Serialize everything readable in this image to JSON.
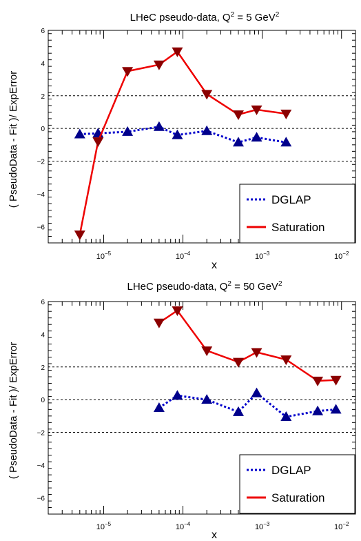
{
  "chart_data": [
    {
      "type": "line",
      "title_parts": [
        "LHeC pseudo-data, Q",
        "2",
        " = 5 GeV",
        "2"
      ],
      "ylabel": "( PseudoData - Fit )/ ExpError",
      "xlabel": "x",
      "x_scale": "log",
      "xlim": [
        2e-06,
        0.015
      ],
      "ylim": [
        -7,
        6
      ],
      "y_ticks": [
        6,
        4,
        2,
        0,
        -2,
        -4,
        -6
      ],
      "x_ticks": [
        {
          "value": 1e-05,
          "base": "10",
          "exp": "−5"
        },
        {
          "value": 0.0001,
          "base": "10",
          "exp": "−4"
        },
        {
          "value": 0.001,
          "base": "10",
          "exp": "−3"
        },
        {
          "value": 0.01,
          "base": "10",
          "exp": "−2"
        }
      ],
      "reference_lines": [
        2,
        0,
        -2
      ],
      "series": [
        {
          "name": "DGLAP",
          "color": "#0000cc",
          "marker_color": "#00008b",
          "marker": "triangle-up",
          "line_style": "dotted",
          "x": [
            5e-06,
            8.5e-06,
            2e-05,
            5e-05,
            8.5e-05,
            0.0002,
            0.0005,
            0.00085,
            0.002
          ],
          "y": [
            -0.35,
            -0.3,
            -0.2,
            0.1,
            -0.4,
            -0.15,
            -0.85,
            -0.55,
            -0.85
          ]
        },
        {
          "name": "Saturation",
          "color": "#ee0000",
          "marker_color": "#8b0000",
          "marker": "triangle-down",
          "line_style": "solid",
          "x": [
            5e-06,
            8.5e-06,
            2e-05,
            5e-05,
            8.5e-05,
            0.0002,
            0.0005,
            0.00085,
            0.002
          ],
          "y": [
            -6.5,
            -0.8,
            3.5,
            3.9,
            4.7,
            2.1,
            0.85,
            1.15,
            0.9
          ]
        }
      ],
      "legend": {
        "placement": "bottom-right",
        "entries": [
          "DGLAP",
          "Saturation"
        ]
      }
    },
    {
      "type": "line",
      "title_parts": [
        "LHeC pseudo-data, Q",
        "2",
        " = 50 GeV",
        "2"
      ],
      "ylabel": "( PseudoData - Fit )/ ExpError",
      "xlabel": "x",
      "x_scale": "log",
      "xlim": [
        2e-06,
        0.015
      ],
      "ylim": [
        -7,
        6
      ],
      "y_ticks": [
        6,
        4,
        2,
        0,
        -2,
        -4,
        -6
      ],
      "x_ticks": [
        {
          "value": 1e-05,
          "base": "10",
          "exp": "−5"
        },
        {
          "value": 0.0001,
          "base": "10",
          "exp": "−4"
        },
        {
          "value": 0.001,
          "base": "10",
          "exp": "−3"
        },
        {
          "value": 0.01,
          "base": "10",
          "exp": "−2"
        }
      ],
      "reference_lines": [
        2,
        0,
        -2
      ],
      "series": [
        {
          "name": "DGLAP",
          "color": "#0000cc",
          "marker_color": "#00008b",
          "marker": "triangle-up",
          "line_style": "dotted",
          "x": [
            5e-05,
            8.5e-05,
            0.0002,
            0.0005,
            0.00085,
            0.002,
            0.005,
            0.0085
          ],
          "y": [
            -0.5,
            0.25,
            0.0,
            -0.75,
            0.4,
            -1.05,
            -0.7,
            -0.6
          ]
        },
        {
          "name": "Saturation",
          "color": "#ee0000",
          "marker_color": "#8b0000",
          "marker": "triangle-down",
          "line_style": "solid",
          "x": [
            5e-05,
            8.5e-05,
            0.0002,
            0.0005,
            0.00085,
            0.002,
            0.005,
            0.0085
          ],
          "y": [
            4.7,
            5.45,
            3.0,
            2.3,
            2.9,
            2.45,
            1.15,
            1.2
          ]
        }
      ],
      "legend": {
        "placement": "bottom-right",
        "entries": [
          "DGLAP",
          "Saturation"
        ]
      }
    }
  ]
}
